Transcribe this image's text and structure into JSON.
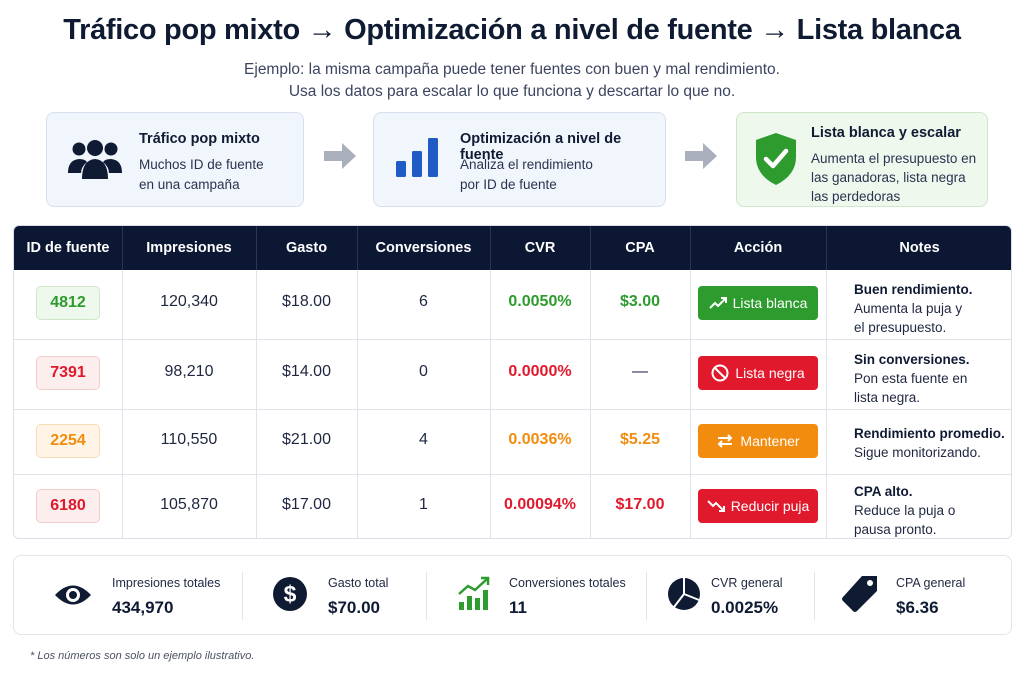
{
  "header": {
    "title": "Tráfico pop mixto → Optimización a nivel de fuente → Lista blanca",
    "subtitle_line1": "Ejemplo: la misma campaña puede tener fuentes con buen y mal rendimiento.",
    "subtitle_line2": "Usa los datos para escalar lo que funciona y descartar lo que no."
  },
  "steps": [
    {
      "icon": "users-icon",
      "title": "Tráfico pop mixto",
      "desc1": "Muchos ID de fuente",
      "desc2": "en una campaña",
      "desc3": ""
    },
    {
      "icon": "bar-chart-icon",
      "title": "Optimización a nivel de fuente",
      "desc1": "Analiza el rendimiento",
      "desc2": "por ID de fuente",
      "desc3": ""
    },
    {
      "icon": "shield-check-icon",
      "title": "Lista blanca y escalar",
      "desc1": "Aumenta el presupuesto en",
      "desc2": "las ganadoras, lista negra",
      "desc3": "las perdedoras"
    }
  ],
  "table": {
    "columns": [
      "ID de fuente",
      "Impresiones",
      "Gasto",
      "Conversiones",
      "CVR",
      "CPA",
      "Acción",
      "Notes"
    ],
    "rows": [
      {
        "id": "4812",
        "impressions": "120,340",
        "spend": "$18.00",
        "conversions": "6",
        "cvr": "0.0050%",
        "cpa": "$3.00",
        "action": "Lista blanca",
        "action_icon": "trending-up-icon",
        "note_title": "Buen rendimiento.",
        "note_l1": "Aumenta la puja y",
        "note_l2": "el presupuesto.",
        "color": "#2e9b2e"
      },
      {
        "id": "7391",
        "impressions": "98,210",
        "spend": "$14.00",
        "conversions": "0",
        "cvr": "0.0000%",
        "cpa": "—",
        "action": "Lista negra",
        "action_icon": "ban-icon",
        "note_title": "Sin conversiones.",
        "note_l1": "Pon esta fuente en",
        "note_l2": "lista negra.",
        "color": "#e0192d"
      },
      {
        "id": "2254",
        "impressions": "110,550",
        "spend": "$21.00",
        "conversions": "4",
        "cvr": "0.0036%",
        "cpa": "$5.25",
        "action": "Mantener",
        "action_icon": "swap-icon",
        "note_title": "Rendimiento promedio.",
        "note_l1": "Sigue monitorizando.",
        "note_l2": "",
        "color": "#f28c0f"
      },
      {
        "id": "6180",
        "impressions": "105,870",
        "spend": "$17.00",
        "conversions": "1",
        "cvr": "0.00094%",
        "cpa": "$17.00",
        "action": "Reducir puja",
        "action_icon": "trending-down-icon",
        "note_title": "CPA alto.",
        "note_l1": "Reduce la puja o",
        "note_l2": "pausa pronto.",
        "color": "#e0192d"
      }
    ]
  },
  "summary": [
    {
      "icon": "eye-icon",
      "label": "Impresiones totales",
      "value": "434,970"
    },
    {
      "icon": "dollar-icon",
      "label": "Gasto total",
      "value": "$70.00"
    },
    {
      "icon": "growth-chart-icon",
      "label": "Conversiones totales",
      "value": "11"
    },
    {
      "icon": "pie-chart-icon",
      "label": "CVR general",
      "value": "0.0025%"
    },
    {
      "icon": "tag-icon",
      "label": "CPA general",
      "value": "$6.36"
    }
  ],
  "footnote": "* Los números son solo un ejemplo ilustrativo.",
  "colors": {
    "navy": "#0c1733",
    "green": "#2e9b2e",
    "red": "#e0192d",
    "orange": "#f28c0f",
    "blue": "#1f5bc4"
  }
}
